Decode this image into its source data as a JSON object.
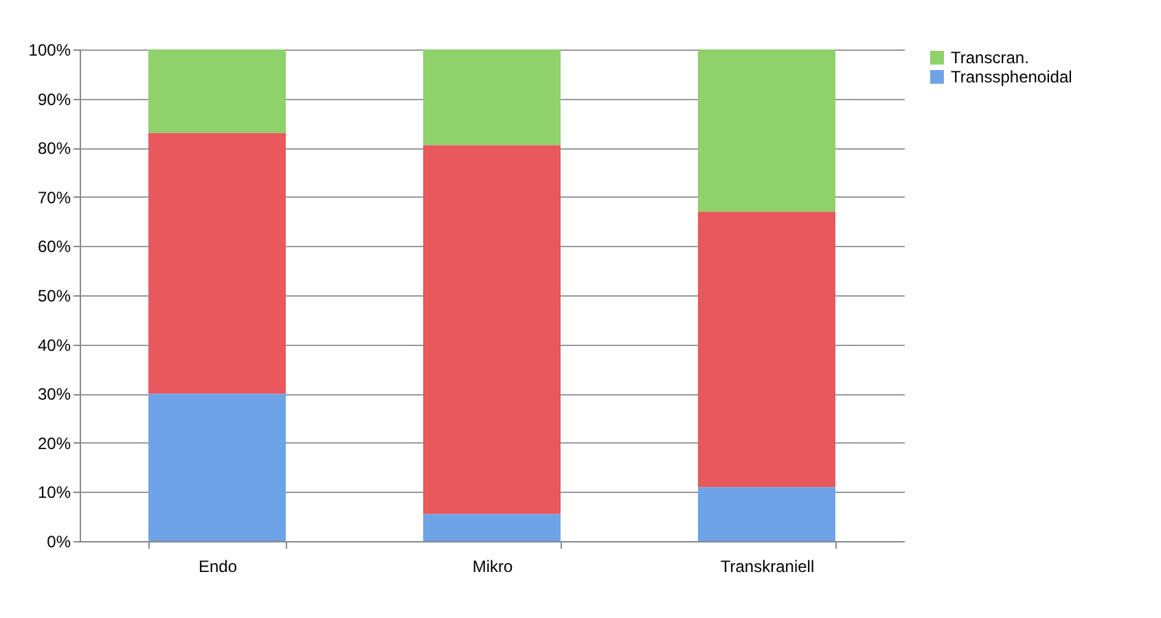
{
  "chart_data": {
    "type": "bar",
    "stacked": true,
    "categories": [
      "Endo",
      "Mikro",
      "Transkraniell"
    ],
    "series": [
      {
        "name": "Transsphenoidal",
        "color": "#6fa3e8",
        "values": [
          30,
          5.5,
          11
        ]
      },
      {
        "color": "#e8585c",
        "values": [
          53,
          75,
          56
        ]
      },
      {
        "name": "Transcran.",
        "color": "#8fd16a",
        "values": [
          17,
          19.5,
          33
        ]
      }
    ],
    "ylim": [
      0,
      100
    ],
    "yticks": [
      {
        "value": 0,
        "label": "0%"
      },
      {
        "value": 10,
        "label": "10%"
      },
      {
        "value": 20,
        "label": "20%"
      },
      {
        "value": 30,
        "label": "30%"
      },
      {
        "value": 40,
        "label": "40%"
      },
      {
        "value": 50,
        "label": "50%"
      },
      {
        "value": 60,
        "label": "60%"
      },
      {
        "value": 70,
        "label": "70%"
      },
      {
        "value": 80,
        "label": "80%"
      },
      {
        "value": 90,
        "label": "90%"
      },
      {
        "value": 100,
        "label": "100%"
      }
    ],
    "grid": "y",
    "legend": "right"
  }
}
